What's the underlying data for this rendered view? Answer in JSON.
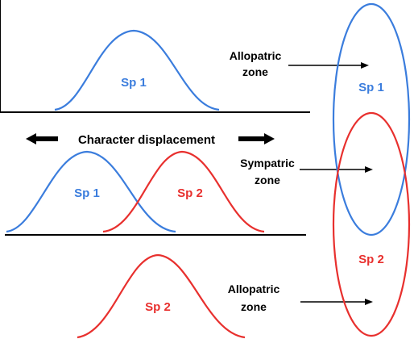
{
  "colors": {
    "species1": "#3B7DDD",
    "species2": "#E8302E",
    "ink": "#000000"
  },
  "top_panel": {
    "curve_label": "Sp 1",
    "zone_label_line1": "Allopatric",
    "zone_label_line2": "zone"
  },
  "middle_panel": {
    "heading": "Character displacement",
    "curve1_label": "Sp 1",
    "curve2_label": "Sp 2",
    "zone_label_line1": "Sympatric",
    "zone_label_line2": "zone"
  },
  "bottom_panel": {
    "curve_label": "Sp 2",
    "zone_label_line1": "Allopatric",
    "zone_label_line2": "zone"
  },
  "range_map": {
    "ellipse1_label": "Sp 1",
    "ellipse2_label": "Sp 2"
  }
}
